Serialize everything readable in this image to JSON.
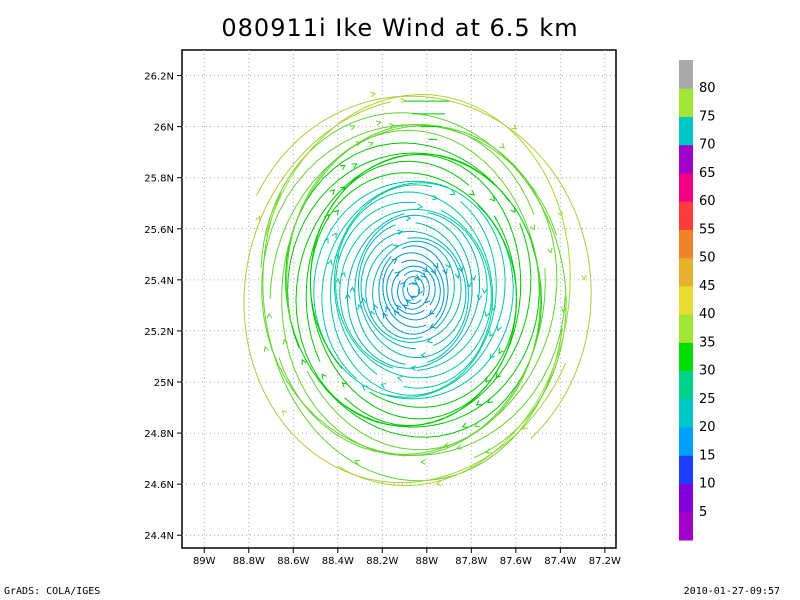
{
  "chart_data": {
    "type": "streamline",
    "title": "080911i Ike Wind at 6.5 km",
    "x_ticks": [
      "89W",
      "88.8W",
      "88.6W",
      "88.4W",
      "88.2W",
      "88W",
      "87.8W",
      "87.6W",
      "87.4W",
      "87.2W"
    ],
    "y_ticks": [
      "24.4N",
      "24.6N",
      "24.8N",
      "25N",
      "25.2N",
      "25.4N",
      "25.6N",
      "25.8N",
      "26N",
      "26.2N"
    ],
    "xlim": [
      -89.1,
      -87.15
    ],
    "ylim": [
      24.35,
      26.3
    ],
    "grid": true,
    "center": {
      "lon": -88.06,
      "lat": 25.36
    },
    "colorbar": {
      "labels": [
        "5",
        "10",
        "15",
        "20",
        "25",
        "30",
        "35",
        "40",
        "45",
        "50",
        "55",
        "60",
        "65",
        "70",
        "75",
        "80"
      ],
      "colors": [
        "#a000c8",
        "#8200dc",
        "#1e3cff",
        "#00a0ff",
        "#00c8c8",
        "#00d28c",
        "#00dc00",
        "#a0e632",
        "#e6dc32",
        "#e6af2d",
        "#f08228",
        "#fa3c3c",
        "#f00082",
        "#a000c8",
        "#00c8c8",
        "#a0e632",
        "#aaaaaa"
      ]
    },
    "speed_bands": [
      {
        "r_deg": 0.2,
        "speed": 22
      },
      {
        "r_deg": 0.35,
        "speed": 25
      },
      {
        "r_deg": 0.5,
        "speed": 32
      },
      {
        "r_deg": 0.7,
        "speed": 38
      },
      {
        "r_deg": 0.9,
        "speed": 36
      }
    ]
  },
  "footer": {
    "left": "GrADS: COLA/IGES",
    "right": "2010-01-27-09:57"
  }
}
